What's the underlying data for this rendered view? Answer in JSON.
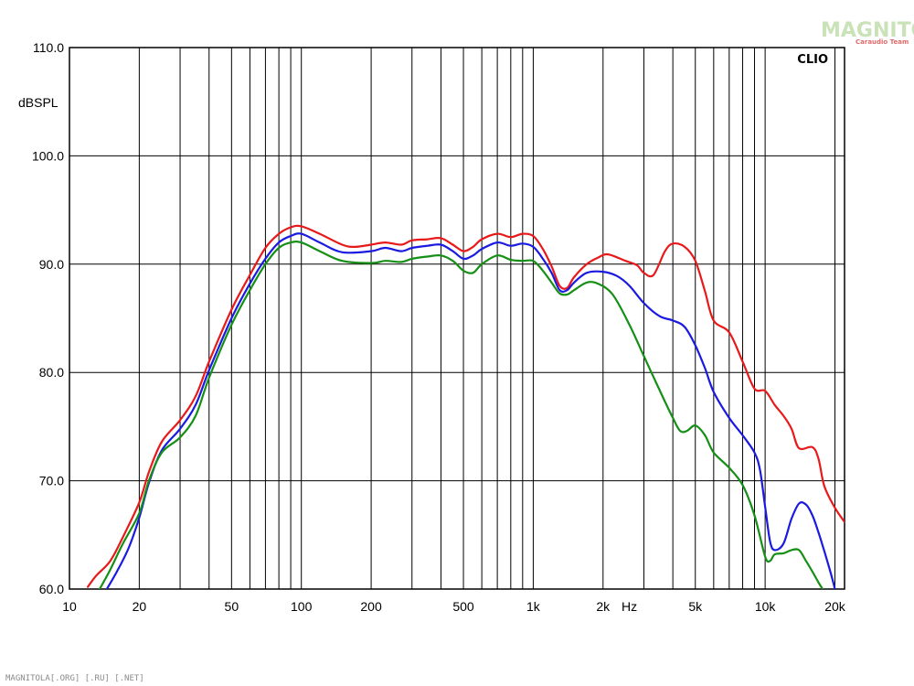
{
  "watermark": {
    "logo_text": "MAGNITOLA",
    "logo_sub": "Caraudio Team"
  },
  "footer_text": "MAGNITOLA[.ORG] [.RU] [.NET]",
  "brand_label": "CLIO",
  "chart_data": {
    "type": "line",
    "title": "",
    "xlabel": "Hz",
    "ylabel": "dBSPL",
    "x_scale": "log",
    "xlim": [
      10,
      22000
    ],
    "ylim": [
      60,
      110
    ],
    "grid": true,
    "y_ticks": [
      60,
      70,
      80,
      90,
      100,
      110
    ],
    "y_tick_labels": [
      "60.0",
      "70.0",
      "80.0",
      "90.0",
      "100.0",
      "110.0"
    ],
    "x_ticks": [
      10,
      20,
      50,
      100,
      200,
      500,
      1000,
      2000,
      5000,
      10000,
      20000
    ],
    "x_tick_labels": [
      "10",
      "20",
      "50",
      "100",
      "200",
      "500",
      "1k",
      "2k",
      "5k",
      "10k",
      "20k"
    ],
    "series": [
      {
        "color": "#e8191a",
        "points": [
          [
            12,
            60.2
          ],
          [
            13,
            61.2
          ],
          [
            15,
            62.6
          ],
          [
            17,
            64.8
          ],
          [
            20,
            68.0
          ],
          [
            22,
            70.8
          ],
          [
            25,
            73.6
          ],
          [
            30,
            75.6
          ],
          [
            35,
            77.8
          ],
          [
            40,
            81.0
          ],
          [
            50,
            85.8
          ],
          [
            60,
            89.0
          ],
          [
            70,
            91.5
          ],
          [
            80,
            92.8
          ],
          [
            90,
            93.4
          ],
          [
            100,
            93.5
          ],
          [
            120,
            92.8
          ],
          [
            150,
            91.8
          ],
          [
            170,
            91.6
          ],
          [
            200,
            91.8
          ],
          [
            230,
            92.0
          ],
          [
            270,
            91.8
          ],
          [
            300,
            92.2
          ],
          [
            350,
            92.3
          ],
          [
            400,
            92.4
          ],
          [
            450,
            91.8
          ],
          [
            500,
            91.2
          ],
          [
            550,
            91.6
          ],
          [
            600,
            92.3
          ],
          [
            700,
            92.8
          ],
          [
            800,
            92.5
          ],
          [
            900,
            92.8
          ],
          [
            1000,
            92.6
          ],
          [
            1100,
            91.4
          ],
          [
            1200,
            89.8
          ],
          [
            1300,
            88.0
          ],
          [
            1400,
            87.8
          ],
          [
            1500,
            88.8
          ],
          [
            1700,
            90.0
          ],
          [
            1900,
            90.6
          ],
          [
            2100,
            90.9
          ],
          [
            2500,
            90.3
          ],
          [
            2800,
            89.9
          ],
          [
            3000,
            89.2
          ],
          [
            3300,
            89.0
          ],
          [
            3700,
            91.2
          ],
          [
            4000,
            91.9
          ],
          [
            4500,
            91.6
          ],
          [
            5000,
            90.3
          ],
          [
            5500,
            87.5
          ],
          [
            6000,
            84.8
          ],
          [
            7000,
            83.7
          ],
          [
            8000,
            81.0
          ],
          [
            9000,
            78.5
          ],
          [
            10000,
            78.3
          ],
          [
            11000,
            77.0
          ],
          [
            12000,
            76.0
          ],
          [
            13000,
            74.8
          ],
          [
            14000,
            73.0
          ],
          [
            16000,
            73.1
          ],
          [
            17000,
            72.0
          ],
          [
            18000,
            69.5
          ],
          [
            20000,
            67.5
          ],
          [
            22000,
            66.2
          ]
        ]
      },
      {
        "color": "#1a1ae0",
        "points": [
          [
            14.5,
            60.0
          ],
          [
            16,
            61.6
          ],
          [
            18,
            63.8
          ],
          [
            20,
            66.6
          ],
          [
            22,
            69.8
          ],
          [
            25,
            72.8
          ],
          [
            30,
            74.8
          ],
          [
            35,
            77.0
          ],
          [
            40,
            80.2
          ],
          [
            50,
            85.0
          ],
          [
            60,
            88.2
          ],
          [
            70,
            90.5
          ],
          [
            80,
            92.0
          ],
          [
            90,
            92.6
          ],
          [
            100,
            92.8
          ],
          [
            120,
            92.0
          ],
          [
            150,
            91.1
          ],
          [
            200,
            91.2
          ],
          [
            230,
            91.5
          ],
          [
            270,
            91.2
          ],
          [
            300,
            91.5
          ],
          [
            350,
            91.7
          ],
          [
            400,
            91.8
          ],
          [
            450,
            91.2
          ],
          [
            500,
            90.5
          ],
          [
            550,
            90.8
          ],
          [
            600,
            91.4
          ],
          [
            700,
            92.0
          ],
          [
            800,
            91.7
          ],
          [
            900,
            91.9
          ],
          [
            1000,
            91.6
          ],
          [
            1100,
            90.5
          ],
          [
            1200,
            89.2
          ],
          [
            1300,
            87.6
          ],
          [
            1400,
            87.6
          ],
          [
            1500,
            88.3
          ],
          [
            1700,
            89.2
          ],
          [
            2000,
            89.3
          ],
          [
            2300,
            88.9
          ],
          [
            2600,
            88.0
          ],
          [
            3000,
            86.4
          ],
          [
            3500,
            85.2
          ],
          [
            4000,
            84.8
          ],
          [
            4500,
            84.2
          ],
          [
            5000,
            82.5
          ],
          [
            5500,
            80.4
          ],
          [
            6000,
            78.2
          ],
          [
            7000,
            75.8
          ],
          [
            8000,
            74.2
          ],
          [
            9000,
            72.6
          ],
          [
            9500,
            71.0
          ],
          [
            10000,
            67.6
          ],
          [
            10500,
            64.4
          ],
          [
            11000,
            63.6
          ],
          [
            12000,
            64.2
          ],
          [
            13000,
            66.5
          ],
          [
            14000,
            67.9
          ],
          [
            15000,
            67.8
          ],
          [
            16000,
            66.8
          ],
          [
            17000,
            65.2
          ],
          [
            18000,
            63.5
          ],
          [
            19000,
            61.8
          ],
          [
            20000,
            60.0
          ]
        ]
      },
      {
        "color": "#168f16",
        "points": [
          [
            13.5,
            60.0
          ],
          [
            15,
            61.8
          ],
          [
            17,
            64.2
          ],
          [
            20,
            67.0
          ],
          [
            22,
            70.0
          ],
          [
            25,
            72.6
          ],
          [
            30,
            74.0
          ],
          [
            35,
            76.0
          ],
          [
            40,
            79.5
          ],
          [
            50,
            84.4
          ],
          [
            60,
            87.6
          ],
          [
            70,
            90.0
          ],
          [
            80,
            91.5
          ],
          [
            90,
            92.0
          ],
          [
            100,
            92.0
          ],
          [
            120,
            91.2
          ],
          [
            150,
            90.3
          ],
          [
            200,
            90.1
          ],
          [
            230,
            90.3
          ],
          [
            270,
            90.2
          ],
          [
            300,
            90.5
          ],
          [
            350,
            90.7
          ],
          [
            400,
            90.8
          ],
          [
            450,
            90.3
          ],
          [
            500,
            89.4
          ],
          [
            550,
            89.2
          ],
          [
            600,
            90.0
          ],
          [
            700,
            90.8
          ],
          [
            800,
            90.4
          ],
          [
            900,
            90.3
          ],
          [
            1000,
            90.3
          ],
          [
            1100,
            89.4
          ],
          [
            1200,
            88.3
          ],
          [
            1300,
            87.3
          ],
          [
            1400,
            87.2
          ],
          [
            1500,
            87.6
          ],
          [
            1700,
            88.3
          ],
          [
            1900,
            88.2
          ],
          [
            2200,
            87.2
          ],
          [
            2600,
            84.4
          ],
          [
            3000,
            81.5
          ],
          [
            3500,
            78.4
          ],
          [
            4000,
            75.8
          ],
          [
            4300,
            74.6
          ],
          [
            4600,
            74.6
          ],
          [
            5000,
            75.1
          ],
          [
            5500,
            74.2
          ],
          [
            6000,
            72.6
          ],
          [
            7000,
            71.2
          ],
          [
            8000,
            69.6
          ],
          [
            9000,
            66.8
          ],
          [
            10000,
            63.0
          ],
          [
            10500,
            62.6
          ],
          [
            11000,
            63.2
          ],
          [
            12000,
            63.3
          ],
          [
            13000,
            63.6
          ],
          [
            14000,
            63.6
          ],
          [
            15000,
            62.6
          ],
          [
            16000,
            61.6
          ],
          [
            17000,
            60.6
          ],
          [
            17700,
            60.0
          ]
        ]
      }
    ]
  }
}
